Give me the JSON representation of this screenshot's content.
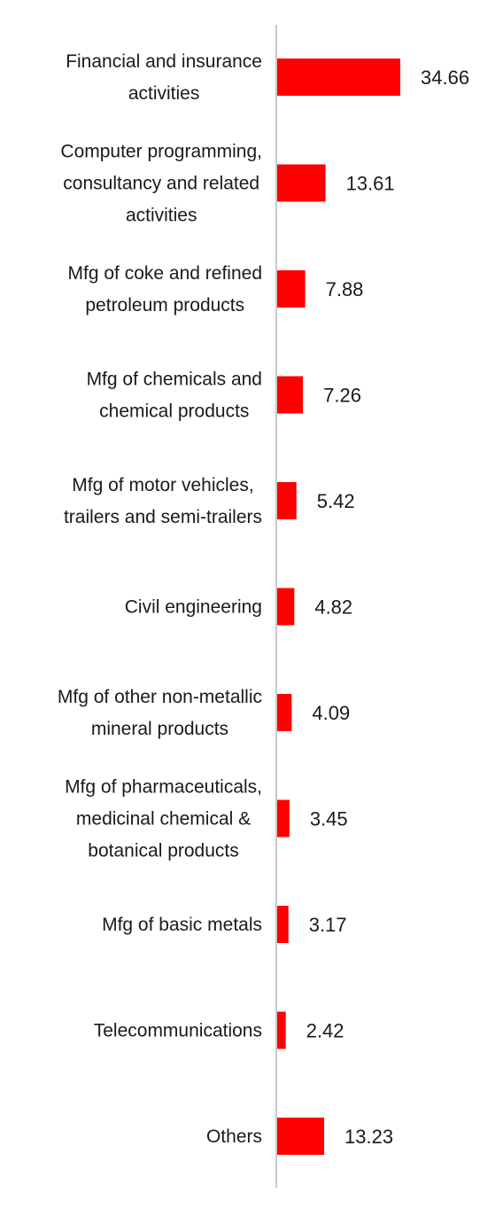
{
  "chart_data": {
    "type": "bar",
    "orientation": "horizontal",
    "categories": [
      [
        "Financial and insurance",
        "activities"
      ],
      [
        "Computer programming,",
        "consultancy and related",
        "activities"
      ],
      [
        "Mfg of coke and refined",
        "petroleum products"
      ],
      [
        "Mfg of chemicals and",
        "chemical products"
      ],
      [
        "Mfg of motor vehicles,",
        "trailers and semi-trailers"
      ],
      [
        "Civil engineering"
      ],
      [
        "Mfg of other non-metallic",
        "mineral products"
      ],
      [
        "Mfg of pharmaceuticals,",
        "medicinal chemical &",
        "botanical products"
      ],
      [
        "Mfg of basic metals"
      ],
      [
        "Telecommunications"
      ],
      [
        "Others"
      ]
    ],
    "values": [
      34.66,
      13.61,
      7.88,
      7.26,
      5.42,
      4.82,
      4.09,
      3.45,
      3.17,
      2.42,
      13.23
    ],
    "value_labels": [
      "34.66",
      "13.61",
      "7.88",
      "7.26",
      "5.42",
      "4.82",
      "4.09",
      "3.45",
      "3.17",
      "2.42",
      "13.23"
    ],
    "xlim": [
      0,
      35
    ],
    "bar_color": "#ff0000",
    "axis_color": "#c8c8c8",
    "grid": false,
    "legend": "none"
  }
}
